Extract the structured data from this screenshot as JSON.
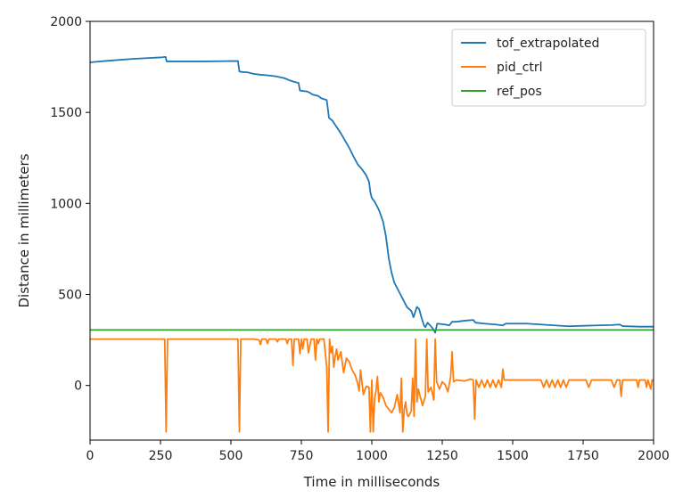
{
  "chart_data": {
    "type": "line",
    "title": "",
    "xlabel": "Time in milliseconds",
    "ylabel": "Distance in millimeters",
    "xlim": [
      0,
      2000
    ],
    "ylim": [
      -300,
      2000
    ],
    "x_ticks": [
      0,
      250,
      500,
      750,
      1000,
      1250,
      1500,
      1750,
      2000
    ],
    "y_ticks": [
      0,
      500,
      1000,
      1500,
      2000
    ],
    "grid": false,
    "legend_position": "top-right",
    "series": [
      {
        "name": "tof_extrapolated",
        "color": "#1f77b4",
        "points": [
          [
            0,
            1775
          ],
          [
            20,
            1778
          ],
          [
            50,
            1782
          ],
          [
            100,
            1788
          ],
          [
            150,
            1794
          ],
          [
            200,
            1798
          ],
          [
            250,
            1802
          ],
          [
            268,
            1805
          ],
          [
            272,
            1780
          ],
          [
            300,
            1780
          ],
          [
            400,
            1780
          ],
          [
            500,
            1782
          ],
          [
            525,
            1782
          ],
          [
            530,
            1725
          ],
          [
            540,
            1722
          ],
          [
            560,
            1720
          ],
          [
            580,
            1712
          ],
          [
            600,
            1708
          ],
          [
            640,
            1702
          ],
          [
            660,
            1698
          ],
          [
            690,
            1688
          ],
          [
            710,
            1675
          ],
          [
            725,
            1668
          ],
          [
            740,
            1662
          ],
          [
            745,
            1620
          ],
          [
            770,
            1615
          ],
          [
            780,
            1608
          ],
          [
            790,
            1598
          ],
          [
            810,
            1590
          ],
          [
            820,
            1578
          ],
          [
            840,
            1568
          ],
          [
            848,
            1470
          ],
          [
            860,
            1455
          ],
          [
            875,
            1420
          ],
          [
            890,
            1385
          ],
          [
            905,
            1345
          ],
          [
            920,
            1305
          ],
          [
            935,
            1258
          ],
          [
            950,
            1215
          ],
          [
            965,
            1188
          ],
          [
            980,
            1155
          ],
          [
            990,
            1120
          ],
          [
            995,
            1060
          ],
          [
            1000,
            1030
          ],
          [
            1010,
            1010
          ],
          [
            1025,
            965
          ],
          [
            1040,
            900
          ],
          [
            1050,
            820
          ],
          [
            1060,
            700
          ],
          [
            1070,
            620
          ],
          [
            1080,
            565
          ],
          [
            1100,
            505
          ],
          [
            1115,
            460
          ],
          [
            1125,
            430
          ],
          [
            1140,
            410
          ],
          [
            1148,
            375
          ],
          [
            1160,
            432
          ],
          [
            1168,
            420
          ],
          [
            1175,
            380
          ],
          [
            1185,
            330
          ],
          [
            1190,
            320
          ],
          [
            1198,
            345
          ],
          [
            1210,
            325
          ],
          [
            1218,
            310
          ],
          [
            1225,
            290
          ],
          [
            1232,
            340
          ],
          [
            1260,
            335
          ],
          [
            1275,
            330
          ],
          [
            1285,
            350
          ],
          [
            1300,
            350
          ],
          [
            1330,
            356
          ],
          [
            1360,
            360
          ],
          [
            1368,
            345
          ],
          [
            1400,
            340
          ],
          [
            1440,
            335
          ],
          [
            1465,
            330
          ],
          [
            1475,
            340
          ],
          [
            1500,
            340
          ],
          [
            1550,
            340
          ],
          [
            1600,
            335
          ],
          [
            1650,
            330
          ],
          [
            1700,
            325
          ],
          [
            1750,
            328
          ],
          [
            1800,
            330
          ],
          [
            1850,
            332
          ],
          [
            1880,
            335
          ],
          [
            1890,
            326
          ],
          [
            1950,
            323
          ],
          [
            2000,
            323
          ]
        ]
      },
      {
        "name": "pid_ctrl",
        "color": "#ff7f0e",
        "points": [
          [
            0,
            255
          ],
          [
            265,
            255
          ],
          [
            270,
            -255
          ],
          [
            275,
            255
          ],
          [
            525,
            255
          ],
          [
            530,
            -255
          ],
          [
            535,
            255
          ],
          [
            580,
            255
          ],
          [
            600,
            250
          ],
          [
            605,
            225
          ],
          [
            610,
            255
          ],
          [
            625,
            255
          ],
          [
            630,
            230
          ],
          [
            635,
            255
          ],
          [
            660,
            255
          ],
          [
            665,
            240
          ],
          [
            670,
            255
          ],
          [
            695,
            255
          ],
          [
            700,
            230
          ],
          [
            705,
            255
          ],
          [
            715,
            255
          ],
          [
            720,
            110
          ],
          [
            725,
            255
          ],
          [
            740,
            255
          ],
          [
            745,
            175
          ],
          [
            750,
            255
          ],
          [
            755,
            200
          ],
          [
            760,
            255
          ],
          [
            770,
            255
          ],
          [
            775,
            180
          ],
          [
            780,
            220
          ],
          [
            785,
            255
          ],
          [
            795,
            255
          ],
          [
            800,
            140
          ],
          [
            805,
            255
          ],
          [
            810,
            230
          ],
          [
            815,
            255
          ],
          [
            830,
            255
          ],
          [
            840,
            100
          ],
          [
            845,
            -255
          ],
          [
            850,
            255
          ],
          [
            855,
            180
          ],
          [
            860,
            215
          ],
          [
            865,
            100
          ],
          [
            870,
            160
          ],
          [
            875,
            200
          ],
          [
            880,
            140
          ],
          [
            890,
            185
          ],
          [
            900,
            70
          ],
          [
            910,
            150
          ],
          [
            920,
            130
          ],
          [
            930,
            85
          ],
          [
            940,
            60
          ],
          [
            950,
            10
          ],
          [
            955,
            -30
          ],
          [
            960,
            85
          ],
          [
            970,
            -50
          ],
          [
            980,
            -5
          ],
          [
            990,
            -10
          ],
          [
            995,
            -255
          ],
          [
            1000,
            30
          ],
          [
            1005,
            -255
          ],
          [
            1010,
            -70
          ],
          [
            1015,
            -30
          ],
          [
            1020,
            50
          ],
          [
            1025,
            -90
          ],
          [
            1030,
            -40
          ],
          [
            1040,
            -65
          ],
          [
            1050,
            -110
          ],
          [
            1060,
            -130
          ],
          [
            1070,
            -150
          ],
          [
            1080,
            -120
          ],
          [
            1090,
            -50
          ],
          [
            1100,
            -150
          ],
          [
            1105,
            40
          ],
          [
            1110,
            -255
          ],
          [
            1115,
            -130
          ],
          [
            1120,
            -90
          ],
          [
            1125,
            -160
          ],
          [
            1130,
            -170
          ],
          [
            1140,
            -140
          ],
          [
            1145,
            40
          ],
          [
            1150,
            -170
          ],
          [
            1155,
            255
          ],
          [
            1160,
            -90
          ],
          [
            1165,
            -20
          ],
          [
            1170,
            -50
          ],
          [
            1180,
            -110
          ],
          [
            1190,
            -60
          ],
          [
            1195,
            255
          ],
          [
            1200,
            -35
          ],
          [
            1210,
            -10
          ],
          [
            1220,
            -80
          ],
          [
            1225,
            255
          ],
          [
            1230,
            20
          ],
          [
            1240,
            -20
          ],
          [
            1250,
            20
          ],
          [
            1260,
            5
          ],
          [
            1270,
            -35
          ],
          [
            1280,
            50
          ],
          [
            1285,
            185
          ],
          [
            1290,
            20
          ],
          [
            1300,
            30
          ],
          [
            1330,
            25
          ],
          [
            1350,
            35
          ],
          [
            1360,
            30
          ],
          [
            1365,
            -185
          ],
          [
            1370,
            30
          ],
          [
            1380,
            -10
          ],
          [
            1390,
            30
          ],
          [
            1400,
            -10
          ],
          [
            1410,
            30
          ],
          [
            1420,
            -10
          ],
          [
            1430,
            30
          ],
          [
            1440,
            -10
          ],
          [
            1450,
            30
          ],
          [
            1460,
            -10
          ],
          [
            1465,
            90
          ],
          [
            1470,
            30
          ],
          [
            1600,
            30
          ],
          [
            1610,
            -10
          ],
          [
            1620,
            30
          ],
          [
            1630,
            -10
          ],
          [
            1640,
            30
          ],
          [
            1650,
            -10
          ],
          [
            1660,
            30
          ],
          [
            1670,
            -10
          ],
          [
            1680,
            30
          ],
          [
            1690,
            -10
          ],
          [
            1700,
            30
          ],
          [
            1760,
            30
          ],
          [
            1770,
            -10
          ],
          [
            1780,
            30
          ],
          [
            1850,
            30
          ],
          [
            1860,
            -10
          ],
          [
            1870,
            30
          ],
          [
            1880,
            30
          ],
          [
            1885,
            -60
          ],
          [
            1890,
            30
          ],
          [
            1940,
            30
          ],
          [
            1945,
            -10
          ],
          [
            1950,
            30
          ],
          [
            1970,
            30
          ],
          [
            1975,
            -10
          ],
          [
            1980,
            30
          ],
          [
            1990,
            -20
          ],
          [
            1995,
            30
          ],
          [
            2000,
            30
          ]
        ]
      },
      {
        "name": "ref_pos",
        "color": "#2ca02c",
        "points": [
          [
            0,
            305
          ],
          [
            2000,
            305
          ]
        ]
      }
    ]
  }
}
